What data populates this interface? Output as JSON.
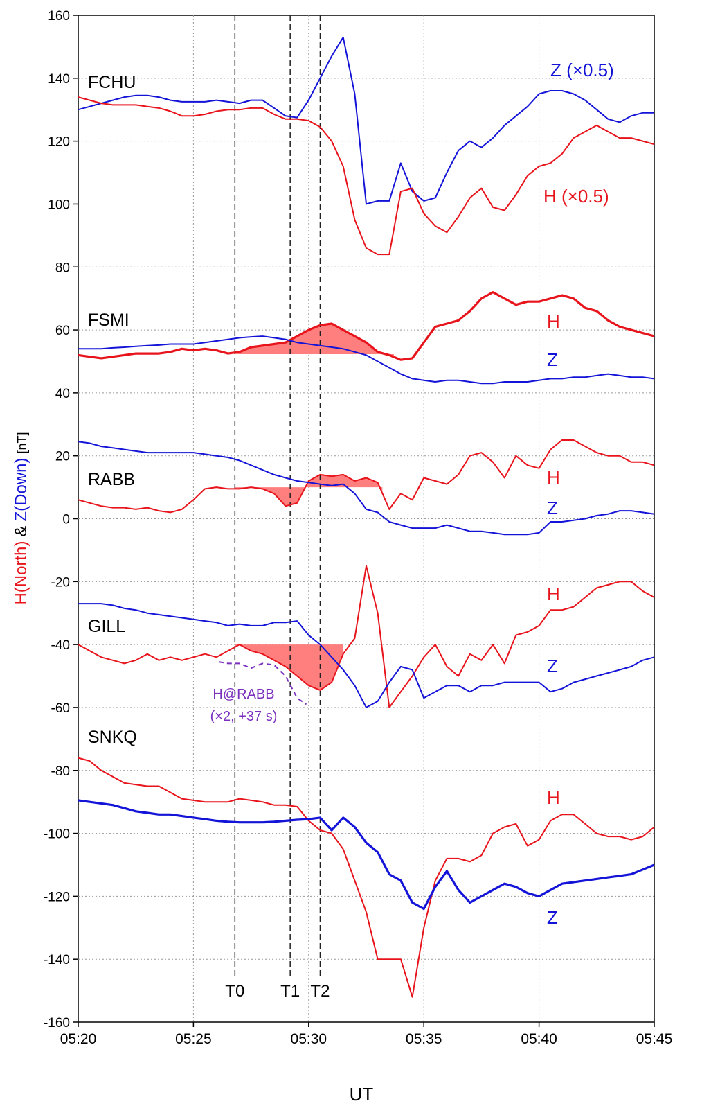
{
  "chart_data": {
    "type": "line",
    "ylabel": [
      {
        "text": "H(North)",
        "color": "#e8141c"
      },
      {
        "text": "&",
        "color": "#000000"
      },
      {
        "text": "Z(Down)",
        "color": "#1414d8"
      },
      {
        "text": "[nT]",
        "color": "#000000"
      }
    ],
    "xlabel": "UT",
    "stations": [
      "FCHU",
      "FSMI",
      "RABB",
      "GILL",
      "SNKQ"
    ],
    "xlim": [
      320,
      345
    ],
    "xticks": [
      {
        "value": 320,
        "label": "05:20"
      },
      {
        "value": 325,
        "label": "05:25"
      },
      {
        "value": 330,
        "label": "05:30"
      },
      {
        "value": 335,
        "label": "05:35"
      },
      {
        "value": 340,
        "label": "05:40"
      },
      {
        "value": 345,
        "label": "05:45"
      }
    ],
    "ylim": [
      -160,
      160
    ],
    "yticks": [
      -160,
      -140,
      -120,
      -100,
      -80,
      -60,
      -40,
      -20,
      0,
      20,
      40,
      60,
      80,
      100,
      120,
      140,
      160
    ],
    "grid": true,
    "vlines": [
      {
        "value": 326.8,
        "label": "T0"
      },
      {
        "value": 329.2,
        "label": "T1"
      },
      {
        "value": 330.5,
        "label": "T2"
      }
    ],
    "x": [
      320,
      320.5,
      321,
      321.5,
      322,
      322.5,
      323,
      323.5,
      324,
      324.5,
      325,
      325.5,
      326,
      326.5,
      327,
      327.5,
      328,
      328.5,
      329,
      329.5,
      330,
      330.5,
      331,
      331.5,
      332,
      332.5,
      333,
      333.5,
      334,
      334.5,
      335,
      335.5,
      336,
      336.5,
      337,
      337.5,
      338,
      338.5,
      339,
      339.5,
      340,
      340.5,
      341,
      341.5,
      342,
      342.5,
      343,
      343.5,
      344,
      344.5,
      345
    ],
    "series": [
      {
        "name": "Z (×0.5)",
        "color": "#1414d8",
        "line_width": 2,
        "values": [
          130,
          131,
          132,
          133,
          134,
          134.5,
          134.5,
          134,
          133,
          132.5,
          132.5,
          132.5,
          133,
          132.5,
          132,
          133,
          133,
          130.5,
          128,
          127.5,
          133,
          140,
          147,
          153,
          135,
          100,
          101,
          101,
          113,
          104,
          101,
          102,
          110,
          117,
          120,
          118,
          121,
          125,
          128,
          131,
          135,
          136,
          136,
          135,
          133,
          130,
          127,
          126,
          128,
          129,
          129
        ]
      },
      {
        "name": "H (×0.5)",
        "color": "#e8141c",
        "line_width": 2,
        "values": [
          134,
          133,
          132,
          131.5,
          131.5,
          131.5,
          131,
          130.5,
          129.5,
          128,
          128,
          128.5,
          129.5,
          130,
          130,
          130.5,
          130.5,
          128.5,
          127,
          127,
          126.5,
          124.5,
          120,
          112,
          95,
          86,
          84,
          84,
          104,
          105,
          97,
          93,
          91,
          96,
          102,
          105,
          99,
          98,
          103,
          109,
          112,
          113,
          116,
          121,
          123,
          125,
          123,
          121,
          121,
          120,
          119
        ]
      },
      {
        "name": "H",
        "color": "#e8141c",
        "line_width": 3.2,
        "fill": {
          "baseline": 52.3,
          "from": 326.8,
          "to": 333.7,
          "color": "#ff7f7f"
        },
        "values": [
          52,
          51.5,
          51,
          51.5,
          52,
          52.5,
          52.5,
          52.5,
          53,
          54,
          53.5,
          54,
          53.5,
          52.5,
          53,
          54.5,
          55,
          55.5,
          56,
          58,
          60,
          61.5,
          62,
          60,
          58,
          56,
          53,
          52,
          50.5,
          51,
          56,
          61,
          62,
          63,
          66,
          70,
          72,
          70,
          68,
          69,
          69,
          70,
          71,
          70,
          67,
          66,
          63,
          61,
          60,
          59,
          58
        ]
      },
      {
        "name": "Z",
        "color": "#1414d8",
        "line_width": 2,
        "values": [
          54,
          54,
          54,
          54.3,
          54.5,
          54.8,
          55,
          55.2,
          55.5,
          55.5,
          55.5,
          56,
          56.5,
          57,
          57.5,
          57.8,
          58,
          57.5,
          57,
          56,
          55.5,
          55,
          54.5,
          54,
          53,
          52,
          50,
          48,
          46,
          44.5,
          44,
          43.5,
          44,
          44,
          43.5,
          43,
          43,
          43.5,
          43.5,
          43.5,
          44,
          44.5,
          44.5,
          45,
          45,
          45.5,
          46,
          45.5,
          45,
          45,
          44.5
        ]
      },
      {
        "name": "H",
        "color": "#e8141c",
        "line_width": 2,
        "fill": {
          "baseline": 10,
          "from": 326.8,
          "to": 333.2,
          "color": "#ff7f7f"
        },
        "values": [
          6,
          5,
          4,
          3.5,
          3.5,
          3,
          3.5,
          2.5,
          2,
          3,
          6,
          9.5,
          10,
          9.5,
          9.5,
          10,
          9.5,
          8,
          4,
          5,
          12,
          14,
          13.5,
          14,
          12,
          13,
          11.5,
          3,
          8,
          6,
          13,
          12,
          11,
          14,
          20,
          21,
          18,
          13,
          20,
          17,
          16,
          22,
          25,
          25,
          23,
          21,
          20,
          20,
          18,
          18,
          17
        ]
      },
      {
        "name": "Z",
        "color": "#1414d8",
        "line_width": 2,
        "values": [
          24.5,
          24,
          23,
          22.5,
          22,
          21.5,
          21,
          21,
          21,
          21,
          21,
          20.5,
          20,
          19.5,
          18.5,
          17,
          15.5,
          14,
          13,
          12,
          11.5,
          11,
          10.5,
          11,
          8,
          3,
          2,
          -1,
          -2,
          -3,
          -3,
          -3,
          -2,
          -3,
          -4,
          -4,
          -4.5,
          -5,
          -5,
          -5,
          -4.5,
          -1,
          -1,
          -0.5,
          0,
          1,
          1.5,
          2.5,
          2.5,
          2,
          1.5
        ]
      },
      {
        "name": "H",
        "color": "#e8141c",
        "line_width": 2,
        "fill": {
          "baseline": -40,
          "from": 326.8,
          "to": 331.5,
          "color": "#ff7f7f"
        },
        "values": [
          -40,
          -42,
          -44,
          -45,
          -46,
          -45,
          -43,
          -45,
          -44,
          -45,
          -44,
          -43,
          -44,
          -42,
          -40,
          -42,
          -43,
          -45,
          -47,
          -50,
          -53,
          -54.5,
          -52,
          -43,
          -38,
          -15,
          -30,
          -60,
          -55,
          -50,
          -44,
          -40,
          -47,
          -50,
          -43,
          -45,
          -40,
          -46,
          -37,
          -36,
          -34,
          -29,
          -29,
          -28,
          -25,
          -22,
          -21,
          -20,
          -20,
          -23,
          -25
        ]
      },
      {
        "name": "Z",
        "color": "#1414d8",
        "line_width": 2,
        "values": [
          -27,
          -27,
          -27,
          -27.5,
          -28.5,
          -29,
          -30,
          -30.5,
          -31,
          -31.5,
          -32,
          -32.5,
          -33,
          -34,
          -33.5,
          -34,
          -34,
          -33,
          -33,
          -32.5,
          -37,
          -40,
          -44,
          -48,
          -53,
          -60,
          -58,
          -52,
          -47,
          -48,
          -57,
          -55,
          -53,
          -53,
          -55,
          -53,
          -53,
          -52,
          -52,
          -52,
          -52,
          -55,
          -54,
          -52,
          -51,
          -50,
          -49,
          -48,
          -47,
          -45,
          -44
        ]
      },
      {
        "name": "H",
        "color": "#e8141c",
        "line_width": 2,
        "values": [
          -76,
          -77,
          -80,
          -82,
          -84,
          -84.5,
          -85,
          -85,
          -87,
          -89,
          -89.5,
          -90,
          -90,
          -90,
          -89,
          -89.5,
          -90,
          -91,
          -91,
          -91.5,
          -96,
          -99,
          -100,
          -105,
          -115,
          -125,
          -140,
          -140,
          -140,
          -152,
          -130,
          -115,
          -108,
          -108,
          -109,
          -107,
          -100,
          -98,
          -97,
          -104,
          -102,
          -96,
          -94,
          -94,
          -97,
          -100,
          -101,
          -101,
          -102,
          -101,
          -98
        ]
      },
      {
        "name": "Z",
        "color": "#1414d8",
        "line_width": 3.2,
        "values": [
          -89.5,
          -90,
          -90.5,
          -91,
          -92,
          -93,
          -93.5,
          -94,
          -94,
          -94.5,
          -95,
          -95.5,
          -96,
          -96.3,
          -96.5,
          -96.5,
          -96.5,
          -96.3,
          -96,
          -95.7,
          -95.5,
          -95,
          -99,
          -95,
          -98,
          -103,
          -106,
          -113,
          -115,
          -122,
          -124,
          -117,
          -112,
          -118,
          -122,
          -120,
          -118,
          -116,
          -117,
          -119,
          -120,
          -118,
          -116,
          -115.5,
          -115,
          -114.5,
          -114,
          -113.5,
          -113,
          -111.5,
          -110
        ]
      },
      {
        "name": "H@RABB",
        "note": "(×2, +37 s)",
        "color": "#7b2fbe",
        "line_width": 2,
        "dashed": true,
        "x": [
          326.1,
          326.5,
          327,
          327.5,
          328,
          328.5,
          329,
          329.5,
          329.9
        ],
        "values": [
          -45.5,
          -46,
          -46,
          -47.5,
          -46,
          -46.5,
          -50,
          -57,
          -59
        ]
      }
    ]
  }
}
